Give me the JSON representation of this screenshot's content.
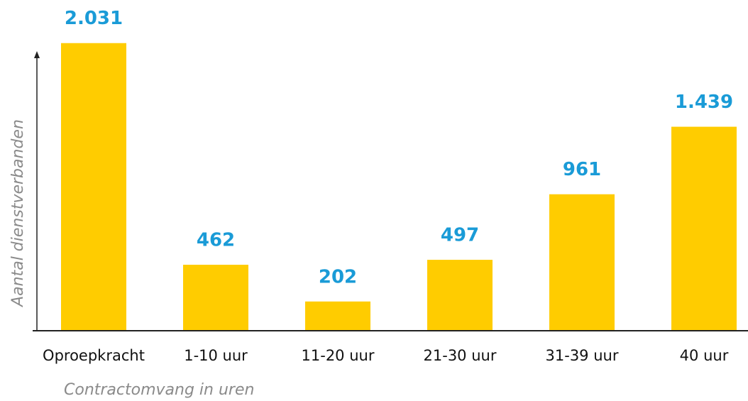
{
  "chart_data": {
    "type": "bar",
    "categories": [
      "Oproepkracht",
      "1-10 uur",
      "11-20 uur",
      "21-30 uur",
      "31-39 uur",
      "40 uur"
    ],
    "values": [
      2031,
      462,
      202,
      497,
      961,
      1439
    ],
    "value_labels": [
      "2.031",
      "462",
      "202",
      "497",
      "961",
      "1.439"
    ],
    "color": "#ffcc00",
    "label_color": "#1a9bd7",
    "ylim": [
      0,
      2100
    ],
    "y_label": "Aantal dienstverbanden",
    "x_label": "Contractomvang in uren"
  }
}
